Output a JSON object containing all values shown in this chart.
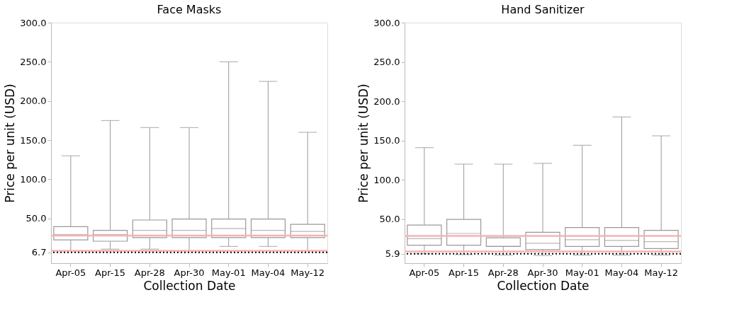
{
  "chart_data": [
    {
      "type": "box",
      "title": "Face Masks",
      "xlabel": "Collection Date",
      "ylabel": "Price per unit (USD)",
      "categories": [
        "Apr-05",
        "Apr-15",
        "Apr-28",
        "Apr-30",
        "May-01",
        "May-04",
        "May-12"
      ],
      "series": [
        {
          "color": "#999999",
          "boxes": [
            {
              "low": 8.7,
              "q1": 22.6,
              "median": 29.4,
              "q3": 39.6,
              "high": 130
            },
            {
              "low": 10.9,
              "q1": 21,
              "median": 29.4,
              "q3": 34.9,
              "high": 175
            },
            {
              "low": 10.9,
              "q1": 25.6,
              "median": 34.9,
              "q3": 48.1,
              "high": 166
            },
            {
              "low": 8.7,
              "q1": 25.6,
              "median": 34.9,
              "q3": 49.4,
              "high": 166
            },
            {
              "low": 14.4,
              "q1": 25.6,
              "median": 37.1,
              "q3": 49.4,
              "high": 250
            },
            {
              "low": 14.4,
              "q1": 25.6,
              "median": 34.9,
              "q3": 49.4,
              "high": 225
            },
            {
              "low": 8.7,
              "q1": 25.6,
              "median": 33.6,
              "q3": 42.6,
              "high": 160
            }
          ]
        }
      ],
      "ylim": [
        -7,
        300
      ],
      "yticks": [
        6.7,
        {
          "value": 50,
          "label": "50.0"
        },
        {
          "value": 100,
          "label": "100.0"
        },
        {
          "value": 150,
          "label": "150.0"
        },
        {
          "value": 200,
          "label": "200.0"
        },
        {
          "value": 250,
          "label": "250.0"
        },
        {
          "value": 300,
          "label": "300.0"
        }
      ],
      "ref_lines": [
        {
          "axis": "y",
          "value": 28.3,
          "color": "#f6b3b3",
          "line_style": "solid"
        },
        {
          "axis": "y",
          "value": 8.7,
          "color": "#f6b3b3",
          "line_style": "solid"
        },
        {
          "axis": "y",
          "value": 6.7,
          "color": "#000000",
          "line_style": "dotted"
        }
      ],
      "grid": false
    },
    {
      "type": "box",
      "title": "Hand Sanitizer",
      "xlabel": "Collection Date",
      "ylabel": "Price per unit (USD)",
      "categories": [
        "Apr-05",
        "Apr-15",
        "Apr-28",
        "Apr-30",
        "May-01",
        "May-04",
        "May-12"
      ],
      "series": [
        {
          "color": "#999999",
          "boxes": [
            {
              "low": 5.9,
              "q1": 16.9,
              "median": 25.2,
              "q3": 42.5,
              "high": 141
            },
            {
              "low": 4.9,
              "q1": 16.9,
              "median": 31.8,
              "q3": 49.7,
              "high": 120
            },
            {
              "low": 4.3,
              "q1": 15.3,
              "median": 15.3,
              "q3": 26.2,
              "high": 120
            },
            {
              "low": 3.8,
              "q1": 11.3,
              "median": 19.3,
              "q3": 33.2,
              "high": 121
            },
            {
              "low": 4.3,
              "q1": 15.3,
              "median": 23.8,
              "q3": 39.3,
              "high": 144
            },
            {
              "low": 4.3,
              "q1": 15.3,
              "median": 23,
              "q3": 39.3,
              "high": 180
            },
            {
              "low": 4.3,
              "q1": 12.6,
              "median": 21.4,
              "q3": 35.8,
              "high": 156
            }
          ]
        }
      ],
      "ylim": [
        -6,
        300
      ],
      "yticks": [
        5.9,
        {
          "value": 50,
          "label": "50.0"
        },
        {
          "value": 100,
          "label": "100.0"
        },
        {
          "value": 150,
          "label": "150.0"
        },
        {
          "value": 200,
          "label": "200.0"
        },
        {
          "value": 250,
          "label": "250.0"
        },
        {
          "value": 300,
          "label": "300.0"
        }
      ],
      "ref_lines": [
        {
          "axis": "y",
          "value": 28.6,
          "color": "#f6b3b3",
          "line_style": "solid"
        },
        {
          "axis": "y",
          "value": 8.9,
          "color": "#f6b3b3",
          "line_style": "solid"
        },
        {
          "axis": "y",
          "value": 5.9,
          "color": "#000000",
          "line_style": "dotted"
        }
      ],
      "grid": false
    }
  ]
}
